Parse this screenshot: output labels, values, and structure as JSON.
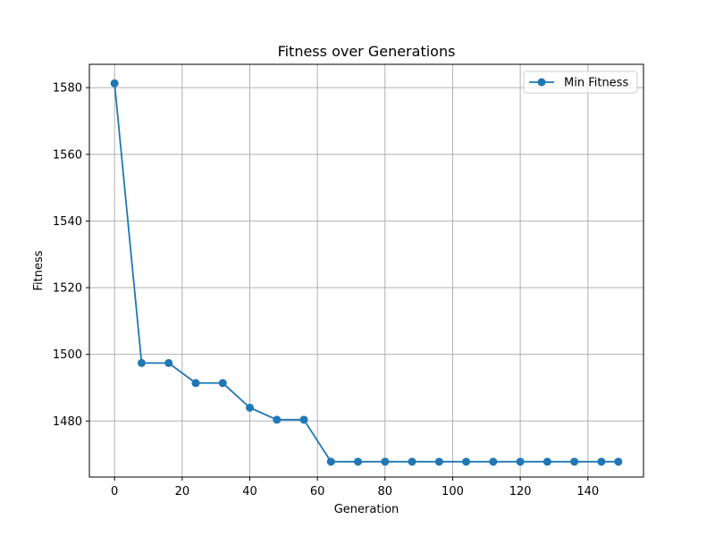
{
  "chart_data": {
    "type": "line",
    "title": "Fitness over Generations",
    "xlabel": "Generation",
    "ylabel": "Fitness",
    "xlim": [
      -7.45,
      156.45
    ],
    "ylim": [
      1463.2,
      1587.0
    ],
    "xticks": [
      0,
      20,
      40,
      60,
      80,
      100,
      120,
      140
    ],
    "yticks": [
      1480,
      1500,
      1520,
      1540,
      1560,
      1580
    ],
    "grid": true,
    "legend_position": "upper right",
    "series": [
      {
        "name": "Min Fitness",
        "color": "#1f77b4",
        "marker": "circle",
        "x": [
          0,
          8,
          16,
          24,
          32,
          40,
          48,
          56,
          64,
          72,
          80,
          88,
          96,
          104,
          112,
          120,
          128,
          136,
          144,
          149
        ],
        "y": [
          1581.3,
          1497.4,
          1497.4,
          1491.4,
          1491.4,
          1484.0,
          1480.4,
          1480.4,
          1467.8,
          1467.8,
          1467.8,
          1467.8,
          1467.8,
          1467.8,
          1467.8,
          1467.8,
          1467.8,
          1467.8,
          1467.8,
          1467.8
        ]
      }
    ]
  }
}
